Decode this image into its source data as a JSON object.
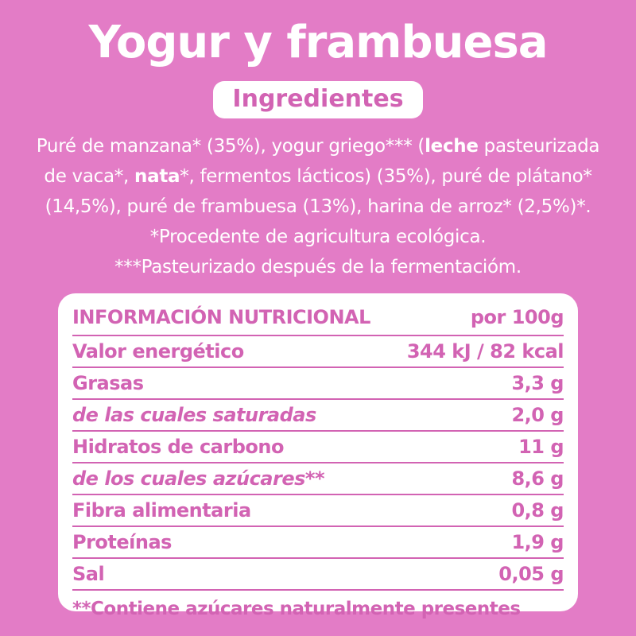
{
  "colors": {
    "background": "#e37cc6",
    "accent_pink": "#d263b3",
    "card_background": "#ffffff",
    "text_on_background": "#ffffff"
  },
  "page": {
    "title": "Yogur y frambuesa",
    "section_badge": "Ingredientes"
  },
  "ingredients": {
    "line1": {
      "pre": "Puré de manzana* (35%), yogur griego*** (",
      "bold": "leche",
      "post": " pasteurizada"
    },
    "line2": {
      "pre": "de vaca*, ",
      "bold": "nata",
      "post": "*, fermentos lácticos) (35%), puré de plátano*"
    },
    "line3": "(14,5%), puré de frambuesa (13%), harina de arroz* (2,5%)*.",
    "line4": "*Procedente de agricultura ecológica.",
    "line5": "***Pasteurizado después de la fermentacióm."
  },
  "nutrition": {
    "header": {
      "title": "INFORMACIÓN NUTRICIONAL",
      "per": "por 100g"
    },
    "rows": [
      {
        "label": "Valor energético",
        "value": "344 kJ / 82 kcal"
      },
      {
        "label": "Grasas",
        "value": "3,3 g"
      },
      {
        "label": "de las cuales saturadas",
        "value": "2,0 g"
      },
      {
        "label": "Hidratos de carbono",
        "value": "11 g"
      },
      {
        "label": "de los cuales azúcares**",
        "value": "8,6 g"
      },
      {
        "label": "Fibra alimentaria",
        "value": "0,8 g"
      },
      {
        "label": "Proteínas",
        "value": "1,9 g"
      },
      {
        "label": "Sal",
        "value": "0,05 g"
      }
    ],
    "footnote": "**Contiene azúcares naturalmente presentes"
  }
}
